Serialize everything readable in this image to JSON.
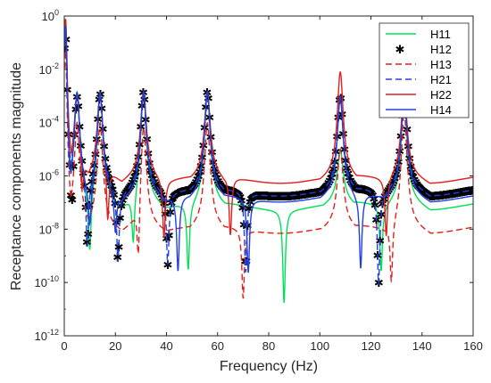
{
  "chart_data": {
    "type": "line",
    "xlabel": "Frequency (Hz)",
    "ylabel": "Receptance components magnitude",
    "xlim": [
      0,
      160
    ],
    "ylim_log10": [
      -12,
      0
    ],
    "y_scale": "log",
    "grid": false,
    "legend_position": "top-right",
    "x_ticks": [
      "0",
      "20",
      "40",
      "60",
      "80",
      "100",
      "120",
      "140",
      "160"
    ],
    "y_ticks": [
      {
        "base": "10",
        "exp": "0"
      },
      {
        "base": "10",
        "exp": "-2"
      },
      {
        "base": "10",
        "exp": "-4"
      },
      {
        "base": "10",
        "exp": "-6"
      },
      {
        "base": "10",
        "exp": "-8"
      },
      {
        "base": "10",
        "exp": "-10"
      },
      {
        "base": "10",
        "exp": "-12"
      }
    ],
    "resonances_hz": [
      0.5,
      5,
      14,
      31,
      56,
      108,
      133
    ],
    "series": [
      {
        "name": "H11",
        "color": "#00e05a",
        "style": "solid",
        "peaks": [
          {
            "x": 0.5,
            "y": 0.8
          },
          {
            "x": 5,
            "y": 0.0015
          },
          {
            "x": 14,
            "y": 0.0015
          },
          {
            "x": 31,
            "y": 0.0015
          },
          {
            "x": 56,
            "y": 0.0015
          },
          {
            "x": 108,
            "y": 1e-05
          },
          {
            "x": 133,
            "y": 0.001
          }
        ],
        "antiresonances": [
          {
            "x": 10,
            "y": 1e-09
          },
          {
            "x": 27,
            "y": 2e-09
          },
          {
            "x": 48.5,
            "y": 5e-10
          },
          {
            "x": 86,
            "y": 5e-11
          },
          {
            "x": 124,
            "y": 5e-10
          }
        ],
        "end_value": {
          "x": 160,
          "y": 1.5e-07
        }
      },
      {
        "name": "H12",
        "color": "#000000",
        "style": "markers-asterisk",
        "peaks": [
          {
            "x": 0.5,
            "y": 0.3
          },
          {
            "x": 5,
            "y": 0.0015
          },
          {
            "x": 14,
            "y": 0.0015
          },
          {
            "x": 31,
            "y": 0.0015
          },
          {
            "x": 56,
            "y": 0.0015
          },
          {
            "x": 108,
            "y": 0.001
          },
          {
            "x": 133,
            "y": 0.0015
          }
        ],
        "antiresonances": [
          {
            "x": 3,
            "y": 1e-08
          },
          {
            "x": 9,
            "y": 1.5e-09
          },
          {
            "x": 21,
            "y": 1e-09
          },
          {
            "x": 40.5,
            "y": 1e-09
          },
          {
            "x": 71,
            "y": 5e-10
          },
          {
            "x": 123,
            "y": 1.5e-10
          }
        ],
        "end_value": {
          "x": 160,
          "y": 5e-07
        }
      },
      {
        "name": "H13",
        "color": "#e02020",
        "style": "dashed",
        "peaks": [
          {
            "x": 0.5,
            "y": 0.05
          },
          {
            "x": 5,
            "y": 0.0001
          },
          {
            "x": 14,
            "y": 0.0001
          },
          {
            "x": 31,
            "y": 0.0001
          },
          {
            "x": 56,
            "y": 0.0001
          },
          {
            "x": 108,
            "y": 1e-05
          },
          {
            "x": 133,
            "y": 0.0003
          }
        ],
        "antiresonances": [
          {
            "x": 29,
            "y": 1e-10
          },
          {
            "x": 70,
            "y": 5e-11
          },
          {
            "x": 128,
            "y": 1e-10
          }
        ],
        "end_value": {
          "x": 160,
          "y": 2e-08
        }
      },
      {
        "name": "H21",
        "color": "#2040e0",
        "style": "dashed",
        "peaks": [
          {
            "x": 0.5,
            "y": 0.3
          },
          {
            "x": 5,
            "y": 0.0015
          },
          {
            "x": 14,
            "y": 0.0015
          },
          {
            "x": 31,
            "y": 0.0015
          },
          {
            "x": 56,
            "y": 0.0015
          },
          {
            "x": 108,
            "y": 0.001
          },
          {
            "x": 133,
            "y": 0.0015
          }
        ],
        "antiresonances": [
          {
            "x": 9,
            "y": 1.5e-09
          },
          {
            "x": 21,
            "y": 1e-09
          },
          {
            "x": 40.5,
            "y": 1e-09
          },
          {
            "x": 71,
            "y": 5e-10
          },
          {
            "x": 123,
            "y": 1.5e-10
          }
        ],
        "end_value": {
          "x": 160,
          "y": 5e-07
        }
      },
      {
        "name": "H22",
        "color": "#e02020",
        "style": "solid",
        "peaks": [
          {
            "x": 0.5,
            "y": 0.8
          },
          {
            "x": 5,
            "y": 0.0015
          },
          {
            "x": 14,
            "y": 0.0015
          },
          {
            "x": 31,
            "y": 0.0015
          },
          {
            "x": 56,
            "y": 0.0015
          },
          {
            "x": 108,
            "y": 0.008
          },
          {
            "x": 133,
            "y": 0.0015
          }
        ],
        "antiresonances": [
          {
            "x": 7,
            "y": 5e-08
          },
          {
            "x": 17,
            "y": 1e-08
          },
          {
            "x": 39,
            "y": 1e-08
          },
          {
            "x": 65,
            "y": 1e-08
          },
          {
            "x": 126,
            "y": 1e-08
          }
        ],
        "end_value": {
          "x": 160,
          "y": 1.5e-06
        }
      },
      {
        "name": "H14",
        "color": "#2040e0",
        "style": "solid",
        "peaks": [
          {
            "x": 0.5,
            "y": 0.5
          },
          {
            "x": 5,
            "y": 0.0015
          },
          {
            "x": 14,
            "y": 0.0015
          },
          {
            "x": 31,
            "y": 0.0015
          },
          {
            "x": 56,
            "y": 0.0015
          },
          {
            "x": 108,
            "y": 0.001
          },
          {
            "x": 133,
            "y": 0.0015
          }
        ],
        "antiresonances": [
          {
            "x": 2,
            "y": 1e-07
          },
          {
            "x": 10,
            "y": 1e-08
          },
          {
            "x": 20,
            "y": 1e-08
          },
          {
            "x": 44.5,
            "y": 5e-10
          },
          {
            "x": 72,
            "y": 5e-10
          },
          {
            "x": 116,
            "y": 5e-10
          }
        ],
        "end_value": {
          "x": 160,
          "y": 3e-07
        }
      }
    ]
  }
}
